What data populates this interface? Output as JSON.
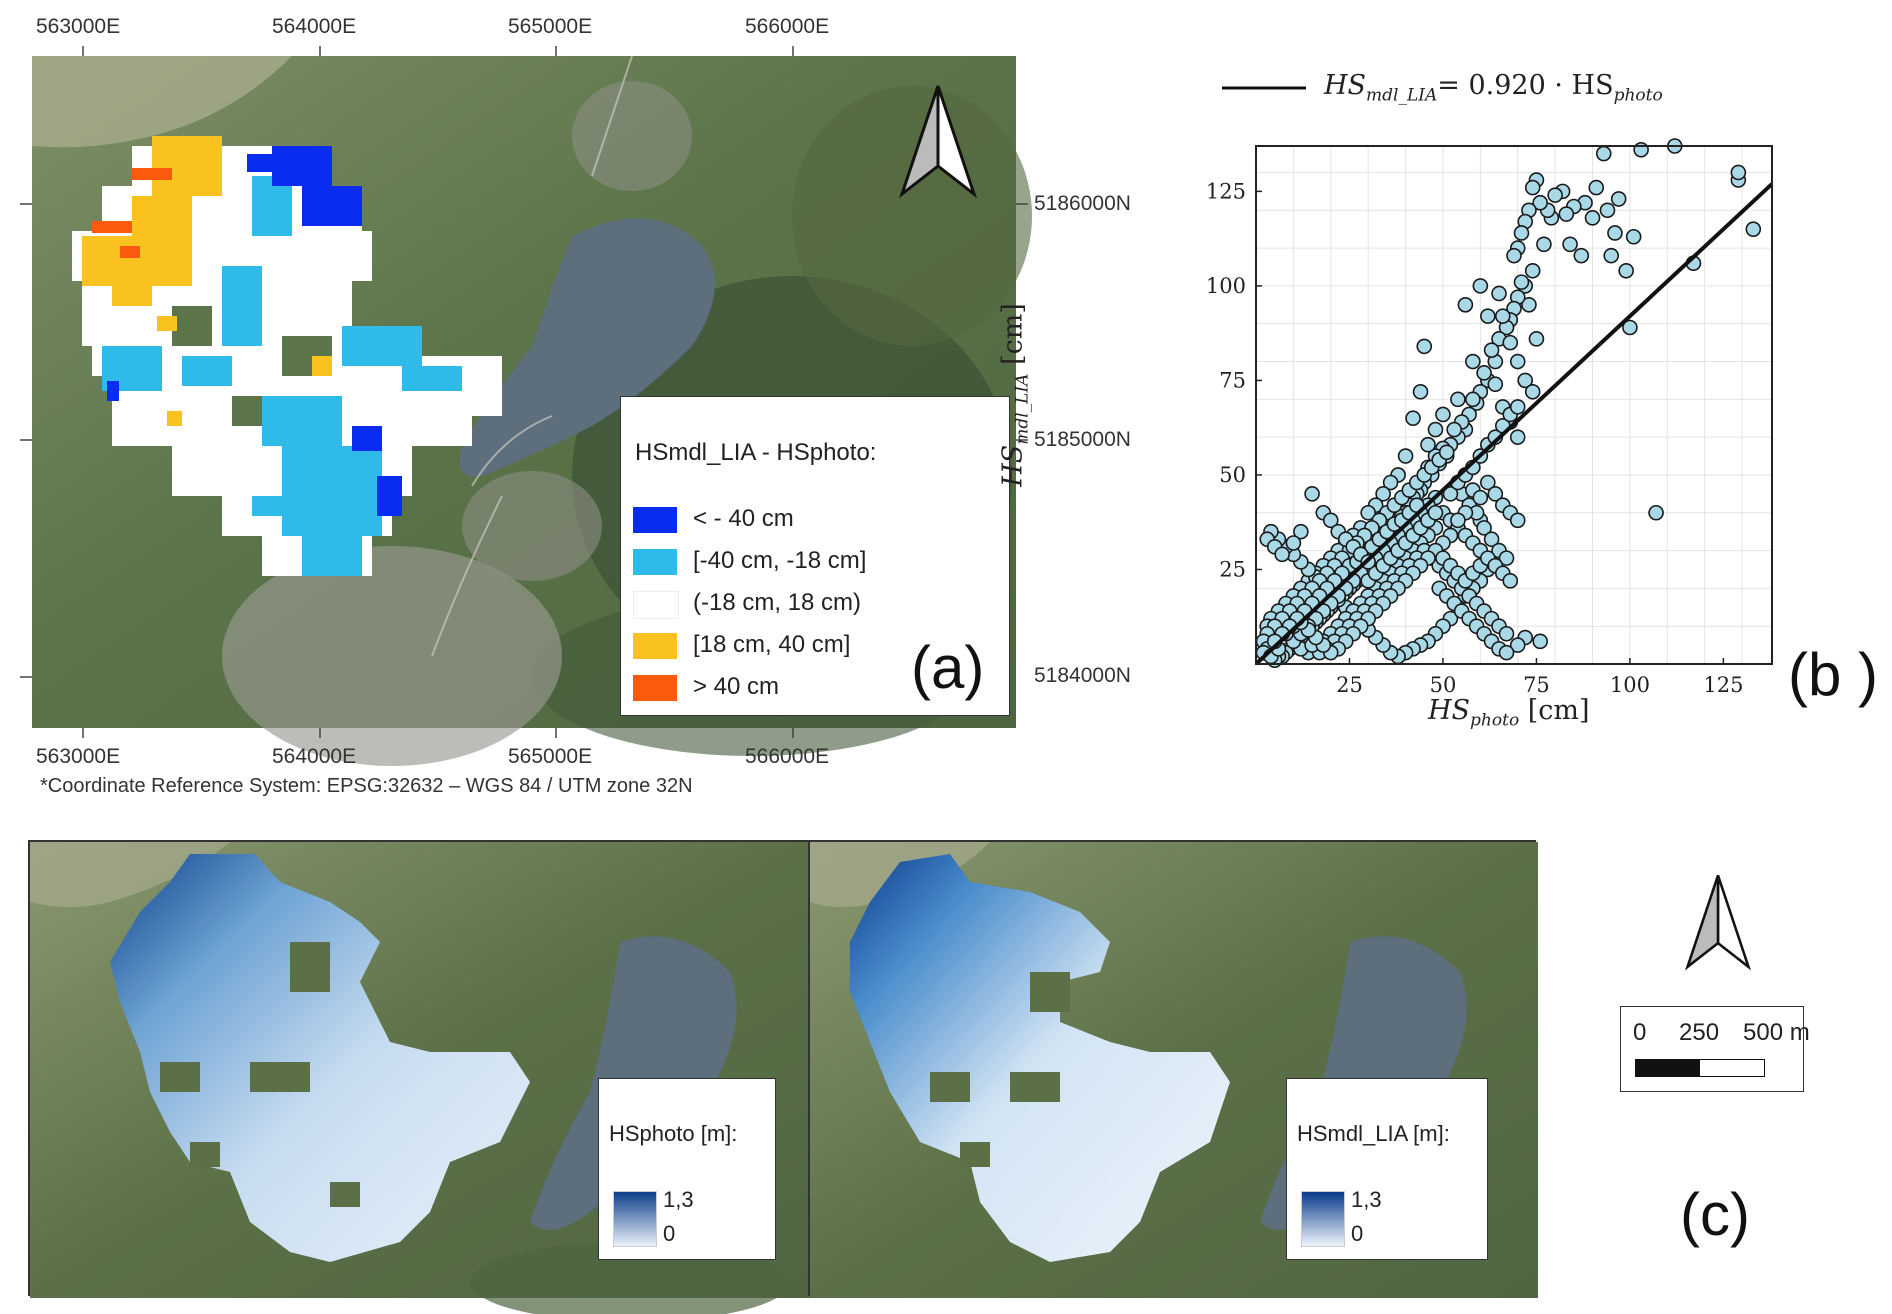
{
  "panel_a": {
    "label": "(a)",
    "x_ticks": [
      "563000E",
      "564000E",
      "565000E",
      "566000E"
    ],
    "y_ticks": [
      "5186000N",
      "5185000N",
      "5184000N"
    ],
    "crs_note": "*Coordinate Reference System: EPSG:32632 – WGS 84 / UTM zone 32N",
    "legend": {
      "title": "HSmdl_LIA - HSphoto:",
      "items": [
        {
          "label": "< - 40 cm",
          "color": "#0a2cf0"
        },
        {
          "label": "[-40 cm, -18 cm]",
          "color": "#2ebbe9"
        },
        {
          "label": "(-18 cm, 18 cm)",
          "color": "#ffffff"
        },
        {
          "label": "[18 cm, 40 cm]",
          "color": "#f9c21e"
        },
        {
          "label": "> 40 cm",
          "color": "#fb5a0c"
        }
      ]
    }
  },
  "panel_b": {
    "label": "(b )",
    "legend_line": {
      "lhs": "HS",
      "lhs_sub": "mdl_LIA",
      "rhs": "= 0.920 · HS",
      "rhs_sub": "photo"
    },
    "xlabel": {
      "main": "HS",
      "sub": "photo",
      "unit": " [cm]"
    },
    "ylabel": {
      "main": "HS",
      "sub": "mdl_LIA",
      "unit": " [cm]"
    }
  },
  "panel_c": {
    "label": "(c)",
    "left_legend": {
      "title": "HSphoto [m]:",
      "max": "1,3",
      "min": "0"
    },
    "right_legend": {
      "title": "HSmdl_LIA [m]:",
      "max": "1,3",
      "min": "0"
    },
    "scalebar": {
      "l0": "0",
      "l1": "250",
      "l2": "500 m"
    }
  },
  "chart_data": {
    "type": "scatter",
    "xlabel": "HS_photo [cm]",
    "ylabel": "HS_mdl_LIA [cm]",
    "xlim": [
      0,
      138
    ],
    "ylim": [
      0,
      137
    ],
    "x_ticks": [
      25,
      50,
      75,
      100,
      125
    ],
    "y_ticks": [
      25,
      50,
      75,
      100,
      125
    ],
    "grid": true,
    "fit_line": {
      "label": "HS_mdl_LIA = 0.920 · HS_photo",
      "slope": 0.92
    },
    "point_color": "#a9d8e6",
    "points": [
      [
        60,
        38
      ],
      [
        107,
        40
      ],
      [
        133,
        115
      ],
      [
        129,
        128
      ],
      [
        129,
        130
      ],
      [
        117,
        106
      ],
      [
        112,
        137
      ],
      [
        103,
        136
      ],
      [
        101,
        113
      ],
      [
        100,
        89
      ],
      [
        99,
        104
      ],
      [
        97,
        123
      ],
      [
        96,
        114
      ],
      [
        95,
        108
      ],
      [
        94,
        120
      ],
      [
        93,
        135
      ],
      [
        91,
        126
      ],
      [
        90,
        118
      ],
      [
        88,
        122
      ],
      [
        87,
        108
      ],
      [
        85,
        121
      ],
      [
        84,
        111
      ],
      [
        83,
        119
      ],
      [
        82,
        125
      ],
      [
        80,
        124
      ],
      [
        79,
        118
      ],
      [
        78,
        120
      ],
      [
        77,
        111
      ],
      [
        76,
        122
      ],
      [
        75,
        128
      ],
      [
        74,
        126
      ],
      [
        73,
        120
      ],
      [
        72,
        117
      ],
      [
        71,
        114
      ],
      [
        70,
        110
      ],
      [
        69,
        108
      ],
      [
        75,
        86
      ],
      [
        74,
        104
      ],
      [
        73,
        95
      ],
      [
        72,
        100
      ],
      [
        71,
        101
      ],
      [
        70,
        97
      ],
      [
        69,
        94
      ],
      [
        68,
        91
      ],
      [
        67,
        89
      ],
      [
        66,
        92
      ],
      [
        65,
        86
      ],
      [
        64,
        80
      ],
      [
        63,
        83
      ],
      [
        62,
        75
      ],
      [
        61,
        77
      ],
      [
        60,
        72
      ],
      [
        59,
        69
      ],
      [
        58,
        70
      ],
      [
        57,
        66
      ],
      [
        56,
        62
      ],
      [
        55,
        64
      ],
      [
        54,
        60
      ],
      [
        53,
        62
      ],
      [
        52,
        58
      ],
      [
        51,
        55
      ],
      [
        50,
        57
      ],
      [
        49,
        53
      ],
      [
        48,
        55
      ],
      [
        47,
        50
      ],
      [
        46,
        52
      ],
      [
        45,
        48
      ],
      [
        44,
        46
      ],
      [
        43,
        45
      ],
      [
        42,
        44
      ],
      [
        41,
        42
      ],
      [
        40,
        40
      ],
      [
        39,
        39
      ],
      [
        38,
        37
      ],
      [
        37,
        36
      ],
      [
        36,
        34
      ],
      [
        35,
        33
      ],
      [
        34,
        31
      ],
      [
        33,
        30
      ],
      [
        32,
        28
      ],
      [
        31,
        27
      ],
      [
        30,
        26
      ],
      [
        29,
        25
      ],
      [
        28,
        24
      ],
      [
        27,
        22
      ],
      [
        26,
        21
      ],
      [
        25,
        20
      ],
      [
        24,
        19
      ],
      [
        23,
        18
      ],
      [
        22,
        17
      ],
      [
        21,
        16
      ],
      [
        20,
        15
      ],
      [
        19,
        14
      ],
      [
        18,
        13
      ],
      [
        17,
        12
      ],
      [
        16,
        11
      ],
      [
        15,
        10
      ],
      [
        14,
        9
      ],
      [
        13,
        8
      ],
      [
        12,
        7
      ],
      [
        11,
        6
      ],
      [
        10,
        5
      ],
      [
        9,
        4
      ],
      [
        8,
        3
      ],
      [
        7,
        2
      ],
      [
        6,
        2
      ],
      [
        5,
        1
      ],
      [
        45,
        84
      ],
      [
        56,
        95
      ],
      [
        62,
        92
      ],
      [
        60,
        100
      ],
      [
        65,
        98
      ],
      [
        68,
        85
      ],
      [
        70,
        80
      ],
      [
        72,
        75
      ],
      [
        74,
        72
      ],
      [
        64,
        74
      ],
      [
        66,
        68
      ],
      [
        68,
        64
      ],
      [
        70,
        60
      ],
      [
        58,
        80
      ],
      [
        54,
        70
      ],
      [
        50,
        66
      ],
      [
        48,
        62
      ],
      [
        46,
        58
      ],
      [
        44,
        72
      ],
      [
        42,
        65
      ],
      [
        40,
        55
      ],
      [
        38,
        50
      ],
      [
        36,
        48
      ],
      [
        34,
        45
      ],
      [
        32,
        42
      ],
      [
        30,
        40
      ],
      [
        28,
        36
      ],
      [
        26,
        34
      ],
      [
        24,
        32
      ],
      [
        22,
        30
      ],
      [
        20,
        28
      ],
      [
        18,
        26
      ],
      [
        16,
        24
      ],
      [
        14,
        22
      ],
      [
        12,
        20
      ],
      [
        10,
        18
      ],
      [
        8,
        16
      ],
      [
        6,
        14
      ],
      [
        4,
        12
      ],
      [
        3,
        10
      ],
      [
        55,
        45
      ],
      [
        57,
        42
      ],
      [
        59,
        40
      ],
      [
        61,
        36
      ],
      [
        63,
        33
      ],
      [
        65,
        30
      ],
      [
        67,
        28
      ],
      [
        62,
        25
      ],
      [
        60,
        22
      ],
      [
        58,
        20
      ],
      [
        56,
        18
      ],
      [
        54,
        15
      ],
      [
        52,
        12
      ],
      [
        50,
        10
      ],
      [
        48,
        8
      ],
      [
        46,
        6
      ],
      [
        44,
        5
      ],
      [
        42,
        4
      ],
      [
        40,
        3
      ],
      [
        38,
        2
      ],
      [
        36,
        3
      ],
      [
        34,
        5
      ],
      [
        32,
        7
      ],
      [
        30,
        9
      ],
      [
        28,
        11
      ],
      [
        26,
        13
      ],
      [
        24,
        15
      ],
      [
        22,
        17
      ],
      [
        20,
        19
      ],
      [
        18,
        21
      ],
      [
        16,
        23
      ],
      [
        14,
        25
      ],
      [
        12,
        27
      ],
      [
        10,
        29
      ],
      [
        8,
        31
      ],
      [
        6,
        33
      ],
      [
        4,
        35
      ],
      [
        3,
        33
      ],
      [
        5,
        31
      ],
      [
        7,
        29
      ],
      [
        50,
        40
      ],
      [
        52,
        38
      ],
      [
        54,
        36
      ],
      [
        56,
        34
      ],
      [
        58,
        32
      ],
      [
        60,
        30
      ],
      [
        48,
        36
      ],
      [
        46,
        34
      ],
      [
        44,
        32
      ],
      [
        42,
        30
      ],
      [
        40,
        28
      ],
      [
        38,
        26
      ],
      [
        36,
        24
      ],
      [
        34,
        22
      ],
      [
        32,
        20
      ],
      [
        30,
        18
      ],
      [
        28,
        16
      ],
      [
        26,
        14
      ],
      [
        24,
        12
      ],
      [
        22,
        10
      ],
      [
        20,
        8
      ],
      [
        18,
        6
      ],
      [
        16,
        4
      ],
      [
        14,
        3
      ],
      [
        12,
        4
      ],
      [
        10,
        6
      ],
      [
        8,
        8
      ],
      [
        6,
        10
      ],
      [
        4,
        8
      ],
      [
        5,
        5
      ],
      [
        45,
        30
      ],
      [
        47,
        28
      ],
      [
        49,
        26
      ],
      [
        51,
        24
      ],
      [
        53,
        22
      ],
      [
        55,
        20
      ],
      [
        57,
        18
      ],
      [
        59,
        16
      ],
      [
        61,
        14
      ],
      [
        63,
        12
      ],
      [
        65,
        10
      ],
      [
        67,
        8
      ],
      [
        72,
        7
      ],
      [
        76,
        6
      ],
      [
        70,
        5
      ],
      [
        43,
        28
      ],
      [
        41,
        26
      ],
      [
        39,
        24
      ],
      [
        37,
        22
      ],
      [
        35,
        20
      ],
      [
        33,
        18
      ],
      [
        31,
        16
      ],
      [
        29,
        14
      ],
      [
        27,
        12
      ],
      [
        25,
        10
      ],
      [
        23,
        8
      ],
      [
        21,
        6
      ],
      [
        19,
        4
      ],
      [
        17,
        3
      ],
      [
        15,
        5
      ],
      [
        35,
        40
      ],
      [
        37,
        42
      ],
      [
        39,
        44
      ],
      [
        41,
        46
      ],
      [
        43,
        48
      ],
      [
        45,
        50
      ],
      [
        47,
        52
      ],
      [
        49,
        54
      ],
      [
        51,
        56
      ],
      [
        33,
        38
      ],
      [
        31,
        36
      ],
      [
        29,
        34
      ],
      [
        27,
        32
      ],
      [
        25,
        30
      ],
      [
        23,
        28
      ],
      [
        21,
        26
      ],
      [
        19,
        24
      ],
      [
        17,
        22
      ],
      [
        15,
        20
      ],
      [
        13,
        18
      ],
      [
        11,
        16
      ],
      [
        9,
        14
      ],
      [
        7,
        12
      ],
      [
        5,
        10
      ],
      [
        3,
        8
      ],
      [
        2,
        6
      ],
      [
        3,
        4
      ],
      [
        2,
        3
      ],
      [
        4,
        2
      ],
      [
        6,
        4
      ],
      [
        52,
        45
      ],
      [
        54,
        48
      ],
      [
        56,
        50
      ],
      [
        58,
        52
      ],
      [
        60,
        55
      ],
      [
        62,
        58
      ],
      [
        64,
        60
      ],
      [
        66,
        63
      ],
      [
        68,
        66
      ],
      [
        70,
        68
      ],
      [
        48,
        44
      ],
      [
        46,
        42
      ],
      [
        44,
        40
      ],
      [
        42,
        38
      ],
      [
        40,
        36
      ],
      [
        38,
        34
      ],
      [
        36,
        32
      ],
      [
        34,
        30
      ],
      [
        32,
        28
      ],
      [
        30,
        26
      ],
      [
        28,
        24
      ],
      [
        26,
        22
      ],
      [
        24,
        20
      ],
      [
        22,
        18
      ],
      [
        20,
        16
      ],
      [
        18,
        14
      ],
      [
        16,
        12
      ],
      [
        14,
        10
      ],
      [
        12,
        8
      ],
      [
        10,
        10
      ],
      [
        62,
        48
      ],
      [
        64,
        45
      ],
      [
        66,
        42
      ],
      [
        68,
        40
      ],
      [
        70,
        38
      ],
      [
        58,
        46
      ],
      [
        60,
        44
      ],
      [
        56,
        40
      ],
      [
        54,
        38
      ],
      [
        52,
        34
      ],
      [
        50,
        32
      ],
      [
        48,
        30
      ],
      [
        46,
        28
      ],
      [
        44,
        26
      ],
      [
        42,
        24
      ],
      [
        40,
        22
      ],
      [
        38,
        20
      ],
      [
        36,
        18
      ],
      [
        34,
        16
      ],
      [
        32,
        14
      ],
      [
        30,
        12
      ],
      [
        28,
        10
      ],
      [
        26,
        8
      ],
      [
        24,
        6
      ],
      [
        22,
        4
      ],
      [
        20,
        3
      ],
      [
        18,
        5
      ],
      [
        16,
        7
      ],
      [
        14,
        9
      ],
      [
        12,
        11
      ],
      [
        25,
        26
      ],
      [
        27,
        27
      ],
      [
        29,
        29
      ],
      [
        31,
        31
      ],
      [
        33,
        33
      ],
      [
        35,
        35
      ],
      [
        37,
        37
      ],
      [
        39,
        38
      ],
      [
        41,
        40
      ],
      [
        43,
        42
      ],
      [
        23,
        24
      ],
      [
        21,
        22
      ],
      [
        19,
        20
      ],
      [
        17,
        18
      ],
      [
        15,
        16
      ],
      [
        13,
        14
      ],
      [
        11,
        12
      ],
      [
        9,
        10
      ],
      [
        7,
        8
      ],
      [
        5,
        6
      ],
      [
        30,
        22
      ],
      [
        32,
        24
      ],
      [
        34,
        26
      ],
      [
        36,
        28
      ],
      [
        38,
        30
      ],
      [
        40,
        32
      ],
      [
        42,
        34
      ],
      [
        44,
        36
      ],
      [
        46,
        38
      ],
      [
        48,
        40
      ],
      [
        50,
        28
      ],
      [
        52,
        26
      ],
      [
        54,
        24
      ],
      [
        56,
        22
      ],
      [
        58,
        24
      ],
      [
        60,
        26
      ],
      [
        62,
        28
      ],
      [
        64,
        26
      ],
      [
        66,
        24
      ],
      [
        68,
        22
      ],
      [
        49,
        20
      ],
      [
        51,
        18
      ],
      [
        53,
        16
      ],
      [
        55,
        14
      ],
      [
        57,
        12
      ],
      [
        59,
        10
      ],
      [
        61,
        8
      ],
      [
        63,
        6
      ],
      [
        65,
        4
      ],
      [
        67,
        3
      ],
      [
        15,
        45
      ],
      [
        18,
        40
      ],
      [
        20,
        38
      ],
      [
        22,
        35
      ],
      [
        24,
        33
      ],
      [
        26,
        31
      ],
      [
        28,
        29
      ],
      [
        30,
        27
      ],
      [
        12,
        35
      ],
      [
        10,
        32
      ]
    ]
  }
}
